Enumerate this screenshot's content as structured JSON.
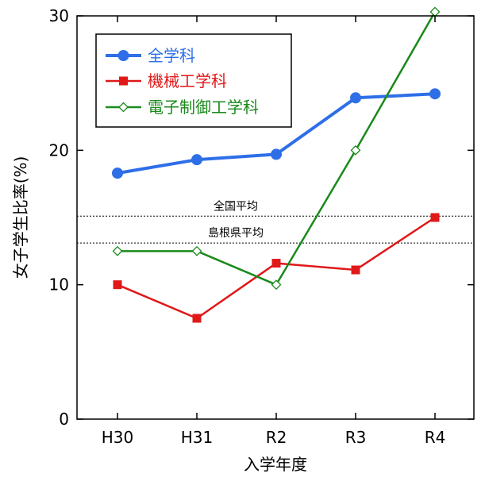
{
  "chart_data": {
    "type": "line",
    "xlabel": "入学年度",
    "ylabel": "女子学生比率(%)",
    "categories": [
      "H30",
      "H31",
      "R2",
      "R3",
      "R4"
    ],
    "ylim": [
      0,
      30
    ],
    "yticks": [
      0,
      10,
      20,
      30
    ],
    "grid": false,
    "legend_position": "top-left",
    "series": [
      {
        "name": "全学科",
        "color": "#2e6fe8",
        "marker": "circle",
        "values": [
          18.3,
          19.3,
          19.7,
          23.9,
          24.2
        ]
      },
      {
        "name": "機械工学科",
        "color": "#e01818",
        "marker": "square",
        "values": [
          10.0,
          7.5,
          11.6,
          11.1,
          15.0
        ]
      },
      {
        "name": "電子制御工学科",
        "color": "#1a8a1a",
        "marker": "diamond-open",
        "values": [
          12.5,
          12.5,
          10.0,
          20.0,
          30.3
        ]
      }
    ],
    "reference_lines": [
      {
        "label": "全国平均",
        "value": 15.1
      },
      {
        "label": "島根県平均",
        "value": 13.1
      }
    ]
  }
}
